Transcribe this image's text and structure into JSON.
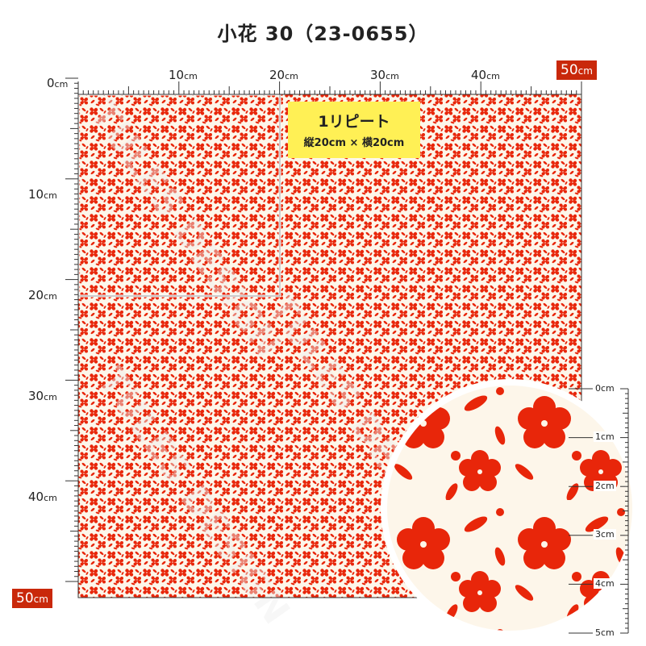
{
  "title": "小花 30（23-0655）",
  "ruler_top": [
    "0",
    "10",
    "20",
    "30",
    "40",
    "50"
  ],
  "ruler_left": [
    "10",
    "20",
    "30",
    "40",
    "50"
  ],
  "unit": "cm",
  "repeat_label": {
    "line1": "1リピート",
    "line2": "縦20cm × 横20cm"
  },
  "zoom_ruler": [
    "0",
    "1",
    "2",
    "3",
    "4",
    "5"
  ],
  "watermark": "TULES DESIGN",
  "colors": {
    "fabric_red": "#e8260a",
    "fabric_bg": "#fdf6ea",
    "tag": "#c9280a",
    "label_bg": "#fff055"
  }
}
